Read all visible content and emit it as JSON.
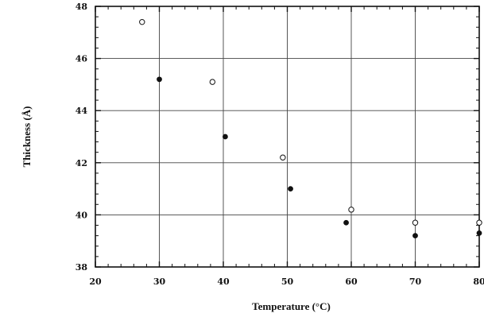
{
  "chart_data": {
    "type": "scatter",
    "title": "",
    "xlabel": "Temperature  (°C)",
    "ylabel": "Thickness  (Å)",
    "xlim": [
      20,
      80
    ],
    "ylim": [
      38,
      48
    ],
    "xticks": [
      20,
      30,
      40,
      50,
      60,
      70,
      80
    ],
    "yticks": [
      38,
      40,
      42,
      44,
      46,
      48
    ],
    "grid": true,
    "legend": "none",
    "series": [
      {
        "marker": "open-circle",
        "color": "#111111",
        "x": [
          27.3,
          38.3,
          49.3,
          60.0,
          70.0,
          80.0
        ],
        "y": [
          47.4,
          45.1,
          42.2,
          40.2,
          39.7,
          39.7
        ]
      },
      {
        "marker": "filled-circle",
        "color": "#111111",
        "x": [
          30.0,
          40.3,
          50.5,
          59.2,
          70.0,
          80.0
        ],
        "y": [
          45.2,
          43.0,
          41.0,
          39.7,
          39.2,
          39.3
        ]
      }
    ]
  }
}
